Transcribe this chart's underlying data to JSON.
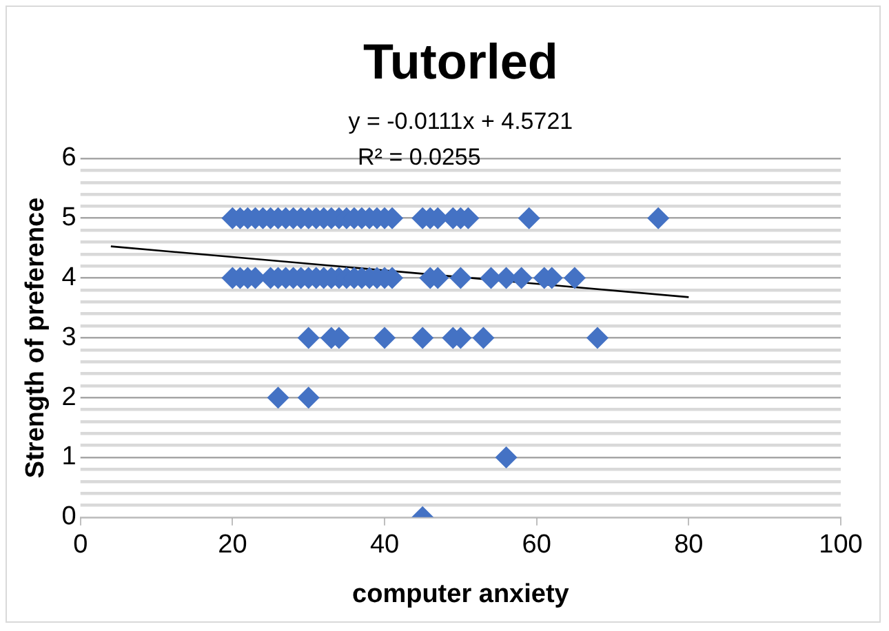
{
  "chart_data": {
    "type": "scatter",
    "title": "Tutorled",
    "xlabel": "computer anxiety",
    "ylabel": "Strength of preference",
    "annotations": [
      "y = -0.0111x + 4.5721",
      "R² = 0.0255"
    ],
    "series": [
      {
        "color": "#4472c4",
        "marker": "diamond",
        "x": [
          20,
          21,
          22,
          23,
          24,
          25,
          26,
          27,
          28,
          29,
          30,
          31,
          32,
          33,
          34,
          35,
          36,
          37,
          38,
          39,
          40,
          41,
          45,
          46,
          47,
          49,
          50,
          51,
          59,
          76
        ],
        "values": [
          5,
          5,
          5,
          5,
          5,
          5,
          5,
          5,
          5,
          5,
          5,
          5,
          5,
          5,
          5,
          5,
          5,
          5,
          5,
          5,
          5,
          5,
          5,
          5,
          5,
          5,
          5,
          5,
          5,
          5
        ]
      },
      {
        "color": "#4472c4",
        "marker": "diamond",
        "x": [
          20,
          21,
          22,
          23,
          25,
          26,
          27,
          28,
          29,
          30,
          31,
          32,
          33,
          34,
          35,
          36,
          37,
          38,
          39,
          40,
          41,
          46,
          47,
          50,
          54,
          56,
          58,
          61,
          62,
          65
        ],
        "values": [
          4,
          4,
          4,
          4,
          4,
          4,
          4,
          4,
          4,
          4,
          4,
          4,
          4,
          4,
          4,
          4,
          4,
          4,
          4,
          4,
          4,
          4,
          4,
          4,
          4,
          4,
          4,
          4,
          4,
          4
        ]
      },
      {
        "color": "#4472c4",
        "marker": "diamond",
        "x": [
          30,
          33,
          34,
          40,
          45,
          49,
          50,
          53,
          68
        ],
        "values": [
          3,
          3,
          3,
          3,
          3,
          3,
          3,
          3,
          3
        ]
      },
      {
        "color": "#4472c4",
        "marker": "diamond",
        "x": [
          26,
          30,
          56,
          45
        ],
        "values": [
          2,
          2,
          1,
          0
        ]
      },
      {
        "type": "line",
        "color": "#000000",
        "marker": "none",
        "x": [
          4,
          80
        ],
        "values": [
          4.53,
          3.68
        ]
      }
    ],
    "xlim": [
      0,
      100
    ],
    "xticks": [
      0,
      20,
      40,
      60,
      80,
      100
    ],
    "ylim": [
      0,
      6
    ],
    "yticks": [
      0,
      {
        "value": 0.2,
        "label": null
      },
      {
        "value": 0.4,
        "label": null
      },
      {
        "value": 0.6,
        "label": null
      },
      {
        "value": 0.8,
        "label": null
      },
      1,
      {
        "value": 1.2,
        "label": null
      },
      {
        "value": 1.4,
        "label": null
      },
      {
        "value": 1.6,
        "label": null
      },
      {
        "value": 1.8,
        "label": null
      },
      2,
      {
        "value": 2.2,
        "label": null
      },
      {
        "value": 2.4,
        "label": null
      },
      {
        "value": 2.6,
        "label": null
      },
      {
        "value": 2.8,
        "label": null
      },
      3,
      {
        "value": 3.2,
        "label": null
      },
      {
        "value": 3.4,
        "label": null
      },
      {
        "value": 3.6,
        "label": null
      },
      {
        "value": 3.8,
        "label": null
      },
      4,
      {
        "value": 4.2,
        "label": null
      },
      {
        "value": 4.4,
        "label": null
      },
      {
        "value": 4.6,
        "label": null
      },
      {
        "value": 4.8,
        "label": null
      },
      5,
      {
        "value": 5.2,
        "label": null
      },
      {
        "value": 5.4,
        "label": null
      },
      {
        "value": 5.6,
        "label": null
      },
      {
        "value": 5.8,
        "label": null
      },
      6
    ],
    "grid": "y",
    "legend": false
  }
}
